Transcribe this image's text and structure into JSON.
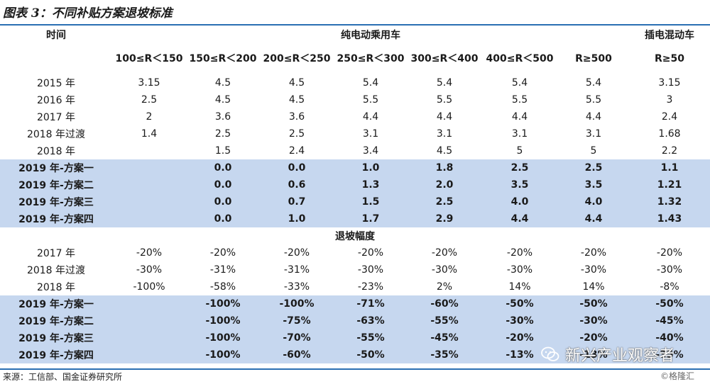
{
  "title": "图表 3：不同补贴方案退坡标准",
  "header": {
    "time_label": "时间",
    "group_pure_ev": "纯电动乘用车",
    "group_phev": "插电混动车"
  },
  "columns": [
    "100≤R＜150",
    "150≤R＜200",
    "200≤R＜250",
    "250≤R＜300",
    "300≤R＜400",
    "400≤R＜500",
    "R≥500",
    "R≥50"
  ],
  "subsidy_rows": [
    {
      "label": "2015 年",
      "values": [
        "3.15",
        "4.5",
        "4.5",
        "5.4",
        "5.4",
        "5.4",
        "5.4",
        "3.15"
      ],
      "highlight": false
    },
    {
      "label": "2016 年",
      "values": [
        "2.5",
        "4.5",
        "4.5",
        "5.5",
        "5.5",
        "5.5",
        "5.5",
        "3"
      ],
      "highlight": false
    },
    {
      "label": "2017 年",
      "values": [
        "2",
        "3.6",
        "3.6",
        "4.4",
        "4.4",
        "4.4",
        "4.4",
        "2.4"
      ],
      "highlight": false
    },
    {
      "label": "2018 年过渡",
      "values": [
        "1.4",
        "2.5",
        "2.5",
        "3.1",
        "3.1",
        "3.1",
        "3.1",
        "1.68"
      ],
      "highlight": false
    },
    {
      "label": "2018 年",
      "values": [
        "",
        "1.5",
        "2.4",
        "3.4",
        "4.5",
        "5",
        "5",
        "2.2"
      ],
      "highlight": false
    },
    {
      "label": "2019 年-方案一",
      "values": [
        "",
        "0.0",
        "0.0",
        "1.0",
        "1.8",
        "2.5",
        "2.5",
        "1.1"
      ],
      "highlight": true
    },
    {
      "label": "2019 年-方案二",
      "values": [
        "",
        "0.0",
        "0.6",
        "1.3",
        "2.0",
        "3.5",
        "3.5",
        "1.21"
      ],
      "highlight": true
    },
    {
      "label": "2019 年-方案三",
      "values": [
        "",
        "0.0",
        "0.7",
        "1.5",
        "2.5",
        "4.0",
        "4.0",
        "1.32"
      ],
      "highlight": true
    },
    {
      "label": "2019 年-方案四",
      "values": [
        "",
        "0.0",
        "1.0",
        "1.7",
        "2.9",
        "4.4",
        "4.4",
        "1.43"
      ],
      "highlight": true
    }
  ],
  "section_label": "退坡幅度",
  "decline_rows": [
    {
      "label": "2017 年",
      "values": [
        "-20%",
        "-20%",
        "-20%",
        "-20%",
        "-20%",
        "-20%",
        "-20%",
        "-20%"
      ],
      "highlight": false
    },
    {
      "label": "2018 年过渡",
      "values": [
        "-30%",
        "-31%",
        "-31%",
        "-30%",
        "-30%",
        "-30%",
        "-30%",
        "-30%"
      ],
      "highlight": false
    },
    {
      "label": "2018 年",
      "values": [
        "-100%",
        "-58%",
        "-33%",
        "-23%",
        "2%",
        "14%",
        "14%",
        "-8%"
      ],
      "highlight": false
    },
    {
      "label": "2019 年-方案一",
      "values": [
        "",
        "-100%",
        "-100%",
        "-71%",
        "-60%",
        "-50%",
        "-50%",
        "-50%"
      ],
      "highlight": true
    },
    {
      "label": "2019 年-方案二",
      "values": [
        "",
        "-100%",
        "-75%",
        "-63%",
        "-55%",
        "-30%",
        "-30%",
        "-45%"
      ],
      "highlight": true
    },
    {
      "label": "2019 年-方案三",
      "values": [
        "",
        "-100%",
        "-70%",
        "-55%",
        "-45%",
        "-20%",
        "-20%",
        "-40%"
      ],
      "highlight": true
    },
    {
      "label": "2019 年-方案四",
      "values": [
        "",
        "-100%",
        "-60%",
        "-50%",
        "-35%",
        "-13%",
        "-13%",
        "-35%"
      ],
      "highlight": true
    }
  ],
  "source": "来源：工信部、国金证券研究所",
  "watermark": {
    "text": "新兴产业观察者",
    "icon": "wechat-icon",
    "corner_text": "©格隆汇"
  },
  "colors": {
    "accent_rule": "#2a6fb3",
    "highlight_row": "#c6d7ef"
  }
}
